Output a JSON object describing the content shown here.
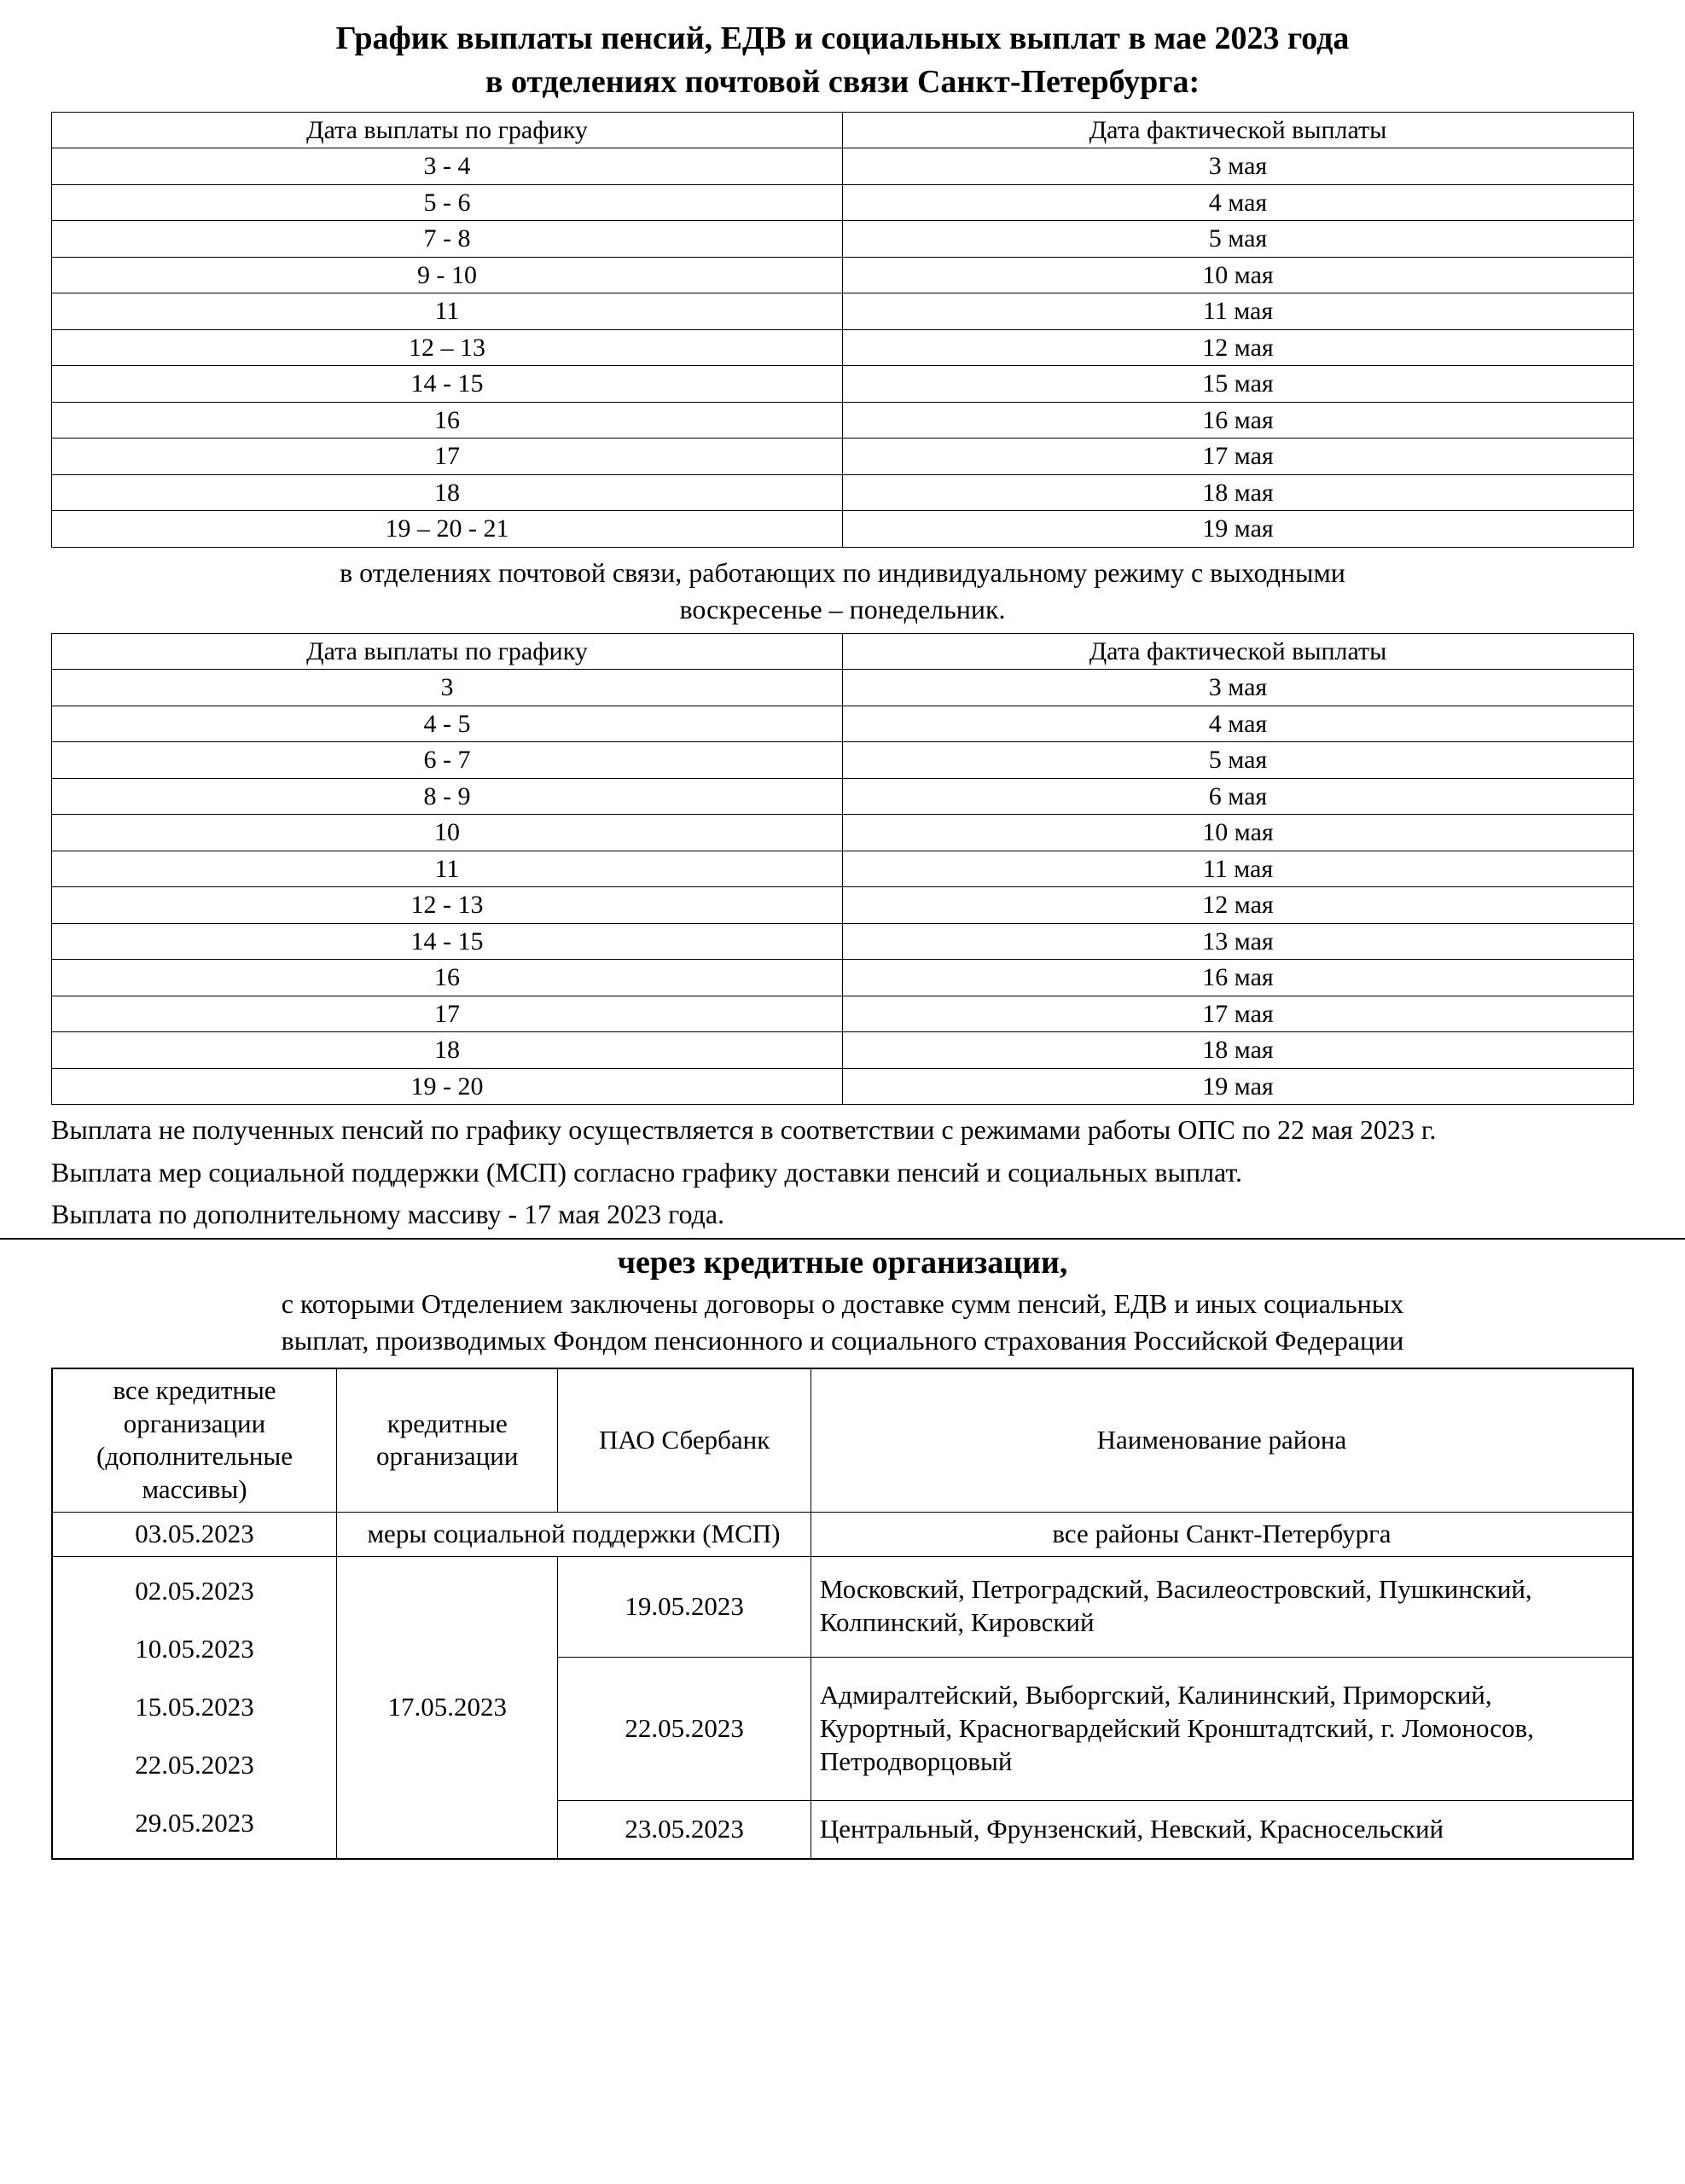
{
  "title_line1": "График выплаты пенсий, ЕДВ и социальных выплат в мае 2023 года",
  "title_line2": "в отделениях почтовой связи Санкт-Петербурга:",
  "schedule_headers": {
    "col1": "Дата выплаты по графику",
    "col2": "Дата фактической выплаты"
  },
  "table1_rows": [
    {
      "plan": "3 - 4",
      "actual": "3 мая"
    },
    {
      "plan": "5 - 6",
      "actual": "4 мая"
    },
    {
      "plan": "7 - 8",
      "actual": "5 мая"
    },
    {
      "plan": "9 - 10",
      "actual": "10 мая"
    },
    {
      "plan": "11",
      "actual": "11 мая"
    },
    {
      "plan": "12 – 13",
      "actual": "12 мая"
    },
    {
      "plan": "14 - 15",
      "actual": "15 мая"
    },
    {
      "plan": "16",
      "actual": "16 мая"
    },
    {
      "plan": "17",
      "actual": "17 мая"
    },
    {
      "plan": "18",
      "actual": "18 мая"
    },
    {
      "plan": "19 – 20 - 21",
      "actual": "19 мая"
    }
  ],
  "between_tables_line1": "в отделениях почтовой связи, работающих по индивидуальному режиму с выходными",
  "between_tables_line2": "воскресенье – понедельник.",
  "table2_rows": [
    {
      "plan": "3",
      "actual": "3 мая"
    },
    {
      "plan": "4 - 5",
      "actual": "4 мая"
    },
    {
      "plan": "6 - 7",
      "actual": "5 мая"
    },
    {
      "plan": "8 - 9",
      "actual": "6 мая"
    },
    {
      "plan": "10",
      "actual": "10 мая"
    },
    {
      "plan": "11",
      "actual": "11 мая"
    },
    {
      "plan": "12 - 13",
      "actual": "12 мая"
    },
    {
      "plan": "14 - 15",
      "actual": "13 мая"
    },
    {
      "plan": "16",
      "actual": "16 мая"
    },
    {
      "plan": "17",
      "actual": "17 мая"
    },
    {
      "plan": "18",
      "actual": "18 мая"
    },
    {
      "plan": "19 - 20",
      "actual": "19 мая"
    }
  ],
  "para1": "Выплата не полученных пенсий по графику осуществляется в соответствии с режимами работы ОПС по 22 мая 2023 г.",
  "para2": "Выплата мер социальной поддержки (МСП) согласно графику доставки пенсий и социальных выплат.",
  "para3": "Выплата по дополнительному массиву - 17 мая  2023 года.",
  "credit_title": "через кредитные организации,",
  "credit_sub_line1": "с которыми Отделением заключены договоры о доставке сумм пенсий, ЕДВ  и иных социальных",
  "credit_sub_line2": "выплат, производимых Фондом пенсионного и социального страхования Российской Федерации",
  "credit_headers": {
    "col1": "все кредитные организации (дополнительные массивы)",
    "col2": "кредитные организации",
    "col3": "ПАО Сбербанк",
    "col4": "Наименование района"
  },
  "credit_row_msp": {
    "date": "03.05.2023",
    "msp_label": "меры социальной поддержки (МСП)",
    "district": "все районы Санкт-Петербурга"
  },
  "credit_body": {
    "left_dates": [
      "02.05.2023",
      "10.05.2023",
      "15.05.2023",
      "22.05.2023",
      "29.05.2023"
    ],
    "middle_date": "17.05.2023",
    "groups": [
      {
        "sber_date": "19.05.2023",
        "districts": "Московский, Петроградский, Василеостровский, Пушкинский, Колпинский, Кировский"
      },
      {
        "sber_date": "22.05.2023",
        "districts": "Адмиралтейский, Выборгский, Калининский, Приморский,  Курортный, Красногвардейский Кронштадтский, г. Ломоносов, Петродворцовый"
      },
      {
        "sber_date": "23.05.2023",
        "districts": "Центральный, Фрунзенский, Невский, Красносельский"
      }
    ]
  },
  "style": {
    "background_color": "#ffffff",
    "text_color": "#000000",
    "border_color": "#000000",
    "font_family": "Times New Roman",
    "title_fontsize_pt": 20,
    "body_fontsize_pt": 16,
    "table_col_widths_pct": [
      50,
      50
    ],
    "credit_table_col_widths_pct": [
      18,
      14,
      16,
      52
    ]
  }
}
